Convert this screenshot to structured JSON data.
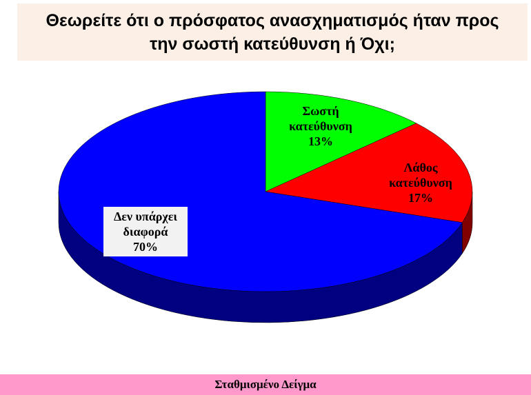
{
  "chart_data": {
    "type": "pie",
    "title": "Θεωρείτε ότι ο πρόσφατος ανασχηματισμός ήταν προς την σωστή κατεύθυνση ή Όχι;",
    "categories": [
      "Σωστή κατεύθυνση",
      "Λάθος κατεύθυνση",
      "Δεν υπάρχει διαφορά"
    ],
    "values": [
      13,
      17,
      70
    ],
    "value_labels": [
      "13%",
      "17%",
      "70%"
    ],
    "colors": [
      "#00ff00",
      "#ff0000",
      "#0000ff"
    ],
    "note": "Σταθμισμένο Δείγμα"
  }
}
